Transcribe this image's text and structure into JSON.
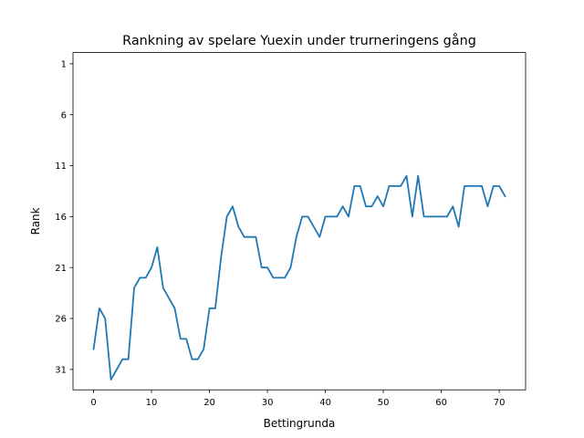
{
  "chart_data": {
    "type": "line",
    "title": "Rankning av spelare Yuexin under trurneringens gång",
    "xlabel": "Bettingrunda",
    "ylabel": "Rank",
    "xlim": [
      -3.55,
      74.55
    ],
    "ylim": [
      33.0,
      -0.1
    ],
    "y_inverted": true,
    "grid": false,
    "line_color": "#1f77b4",
    "x_ticks": [
      0,
      10,
      20,
      30,
      40,
      50,
      60,
      70
    ],
    "y_ticks": [
      1,
      6,
      11,
      16,
      21,
      26,
      31
    ],
    "series": [
      {
        "x": [
          0,
          1,
          2,
          3,
          4,
          5,
          6,
          7,
          8,
          9,
          10,
          11,
          12,
          13,
          14,
          15,
          16,
          17,
          18,
          19,
          20,
          21,
          22,
          23,
          24,
          25,
          26,
          27,
          28,
          29,
          30,
          31,
          32,
          33,
          34,
          35,
          36,
          37,
          38,
          39,
          40,
          41,
          42,
          43,
          44,
          45,
          46,
          47,
          48,
          49,
          50,
          51,
          52,
          53,
          54,
          55,
          56,
          57,
          58,
          59,
          60,
          61,
          62,
          63,
          64,
          65,
          66,
          67,
          68,
          69,
          70,
          71
        ],
        "y": [
          29,
          25,
          26,
          32,
          31,
          30,
          30,
          23,
          22,
          22,
          21,
          19,
          23,
          24,
          25,
          28,
          28,
          30,
          30,
          29,
          25,
          25,
          20,
          16,
          15,
          17,
          18,
          18,
          18,
          21,
          21,
          22,
          22,
          22,
          21,
          18,
          16,
          16,
          17,
          18,
          16,
          16,
          16,
          15,
          16,
          13,
          13,
          15,
          15,
          14,
          15,
          13,
          13,
          13,
          12,
          16,
          12,
          16,
          16,
          16,
          16,
          16,
          15,
          17,
          13,
          13,
          13,
          13,
          15,
          13,
          13,
          14
        ]
      }
    ]
  }
}
